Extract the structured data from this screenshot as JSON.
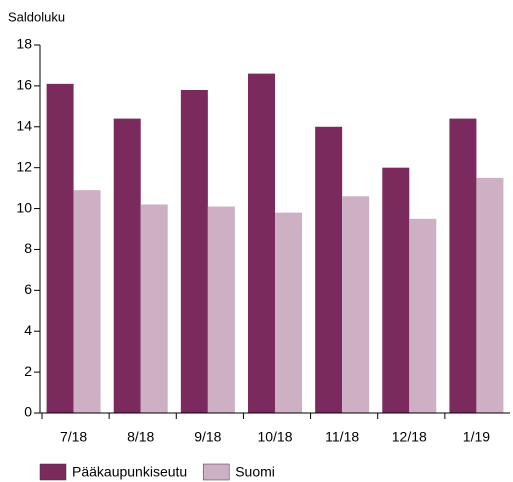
{
  "chart_data": {
    "type": "bar",
    "y_label": "Saldoluku",
    "categories": [
      "7/18",
      "8/18",
      "9/18",
      "10/18",
      "11/18",
      "12/18",
      "1/19"
    ],
    "series": [
      {
        "name": "Pääkaupunkiseutu",
        "color": "#7b2a5e",
        "values": [
          16.1,
          14.4,
          15.8,
          16.6,
          14.0,
          12.0,
          14.4
        ]
      },
      {
        "name": "Suomi",
        "color": "#cdb0c4",
        "values": [
          10.9,
          10.2,
          10.1,
          9.8,
          10.6,
          9.5,
          11.5
        ]
      }
    ],
    "ylim": [
      0,
      18
    ],
    "yticks": [
      0,
      2,
      4,
      6,
      8,
      10,
      12,
      14,
      16,
      18
    ],
    "grid": false,
    "legend": "bottom"
  }
}
